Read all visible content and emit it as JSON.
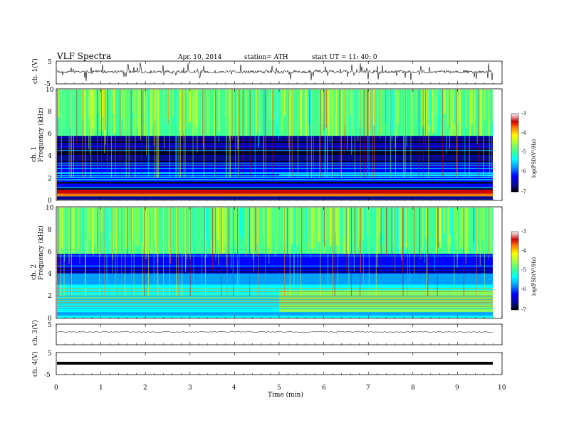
{
  "header": {
    "title": "VLF  Spectra",
    "date": "Apr. 10, 2014",
    "station": "station= ATH",
    "start": "start  UT  =    11: 40: 0"
  },
  "colors": {
    "palette": [
      "#000000",
      "#0a0a8c",
      "#0000ff",
      "#00a0ff",
      "#00ffff",
      "#40ff90",
      "#a0ff40",
      "#ffff00",
      "#ff8000",
      "#d00000",
      "#ffffff"
    ]
  },
  "chart_data": [
    {
      "type": "line",
      "id": "ch1-waveform",
      "ylabel": "ch. 1(V)",
      "ylim": [
        -5,
        5
      ],
      "yticks": [
        "5",
        "-5"
      ],
      "xlim": [
        0,
        10
      ],
      "end_time_min": 9.8
    },
    {
      "type": "heatmap",
      "id": "ch1-spectrogram",
      "ylabel": "ch. 1\nFrequency  (kHz)",
      "ylim": [
        0,
        10
      ],
      "yticks": [
        "10",
        "8",
        "6",
        "4",
        "2",
        "0"
      ],
      "xlim": [
        0,
        10
      ],
      "colorbar": {
        "label": "log(PSD(V²/Hz)",
        "range": [
          -7,
          -3
        ],
        "ticks": [
          "-3",
          "-4",
          "-5",
          "-6",
          "-7"
        ]
      }
    },
    {
      "type": "heatmap",
      "id": "ch2-spectrogram",
      "ylabel": "ch. 2\nFrequency  (kHz)",
      "ylim": [
        0,
        10
      ],
      "yticks": [
        "10",
        "8",
        "6",
        "4",
        "2",
        "0"
      ],
      "xlim": [
        0,
        10
      ],
      "colorbar": {
        "label": "log(PSD(V²/Hz)",
        "range": [
          -7,
          -3
        ],
        "ticks": [
          "-3",
          "-4",
          "-5",
          "-6",
          "-7"
        ]
      }
    },
    {
      "type": "line",
      "id": "ch3-waveform",
      "ylabel": "ch. 3(V)",
      "ylim": [
        -5,
        5
      ],
      "yticks": [
        "5"
      ],
      "xlim": [
        0,
        10
      ]
    },
    {
      "type": "line",
      "id": "ch4-waveform",
      "ylabel": "ch. 4(V)",
      "ylim": [
        -5,
        5
      ],
      "yticks": [
        "5",
        "-5"
      ],
      "xlim": [
        0,
        10
      ],
      "xlabel": "Time  (min)",
      "xticks": [
        "0",
        "1",
        "2",
        "3",
        "4",
        "5",
        "6",
        "7",
        "8",
        "9",
        "10"
      ]
    }
  ]
}
